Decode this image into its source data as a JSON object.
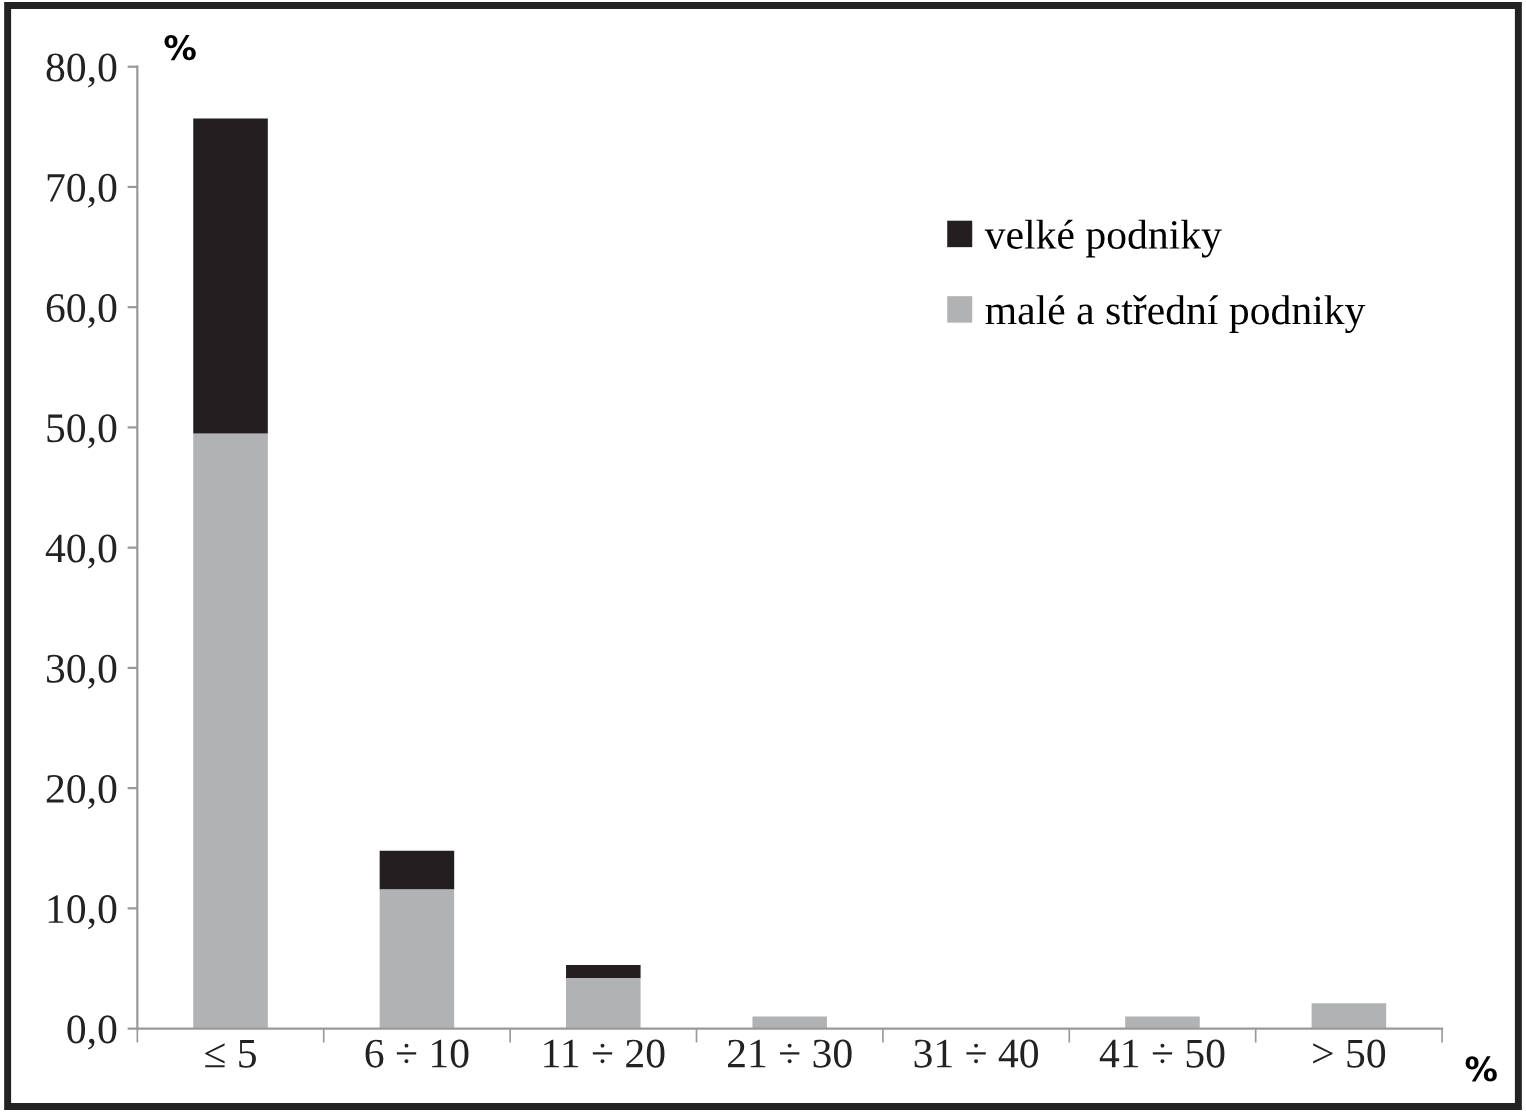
{
  "chart_data": {
    "type": "bar",
    "stacked": true,
    "ylabel": "%",
    "xlabel": "%",
    "categories": [
      "≤ 5",
      "6 ÷ 10",
      "11 ÷ 20",
      "21 ÷ 30",
      "31 ÷ 40",
      "41 ÷ 50",
      "> 50"
    ],
    "series": [
      {
        "name": "malé a střední podniky",
        "color": "#b1b2b4",
        "values": [
          49.5,
          11.6,
          4.2,
          1.0,
          0,
          1.0,
          2.1
        ]
      },
      {
        "name": "velké podniky",
        "color": "#231f20",
        "values": [
          26.2,
          3.2,
          1.1,
          0,
          0,
          0,
          0
        ]
      }
    ],
    "ylim": [
      0,
      80
    ],
    "yticks": [
      {
        "value": 0,
        "label": "0,0"
      },
      {
        "value": 10,
        "label": "10,0"
      },
      {
        "value": 20,
        "label": "20,0"
      },
      {
        "value": 30,
        "label": "30,0"
      },
      {
        "value": 40,
        "label": "40,0"
      },
      {
        "value": 50,
        "label": "50,0"
      },
      {
        "value": 60,
        "label": "60,0"
      },
      {
        "value": 70,
        "label": "70,0"
      },
      {
        "value": 80,
        "label": "80,0"
      }
    ],
    "grid": false,
    "legend": "top right"
  }
}
